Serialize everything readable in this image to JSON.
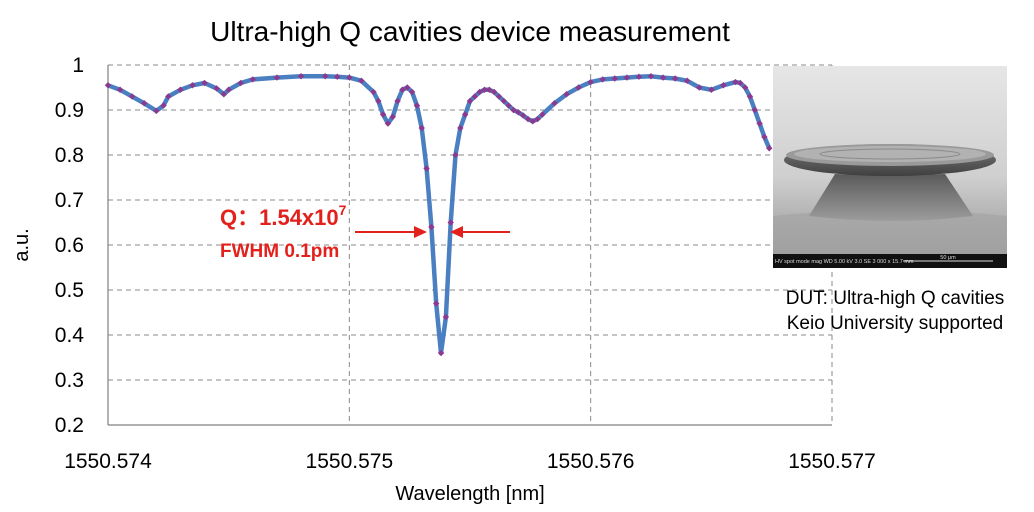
{
  "chart_data": {
    "type": "line",
    "title": "Ultra-high Q cavities device measurement",
    "xlabel": "Wavelength [nm]",
    "ylabel": "a.u.",
    "xlim": [
      1550.574,
      1550.577
    ],
    "ylim": [
      0.2,
      1
    ],
    "x_ticks": [
      "1550.574",
      "1550.575",
      "1550.576",
      "1550.577"
    ],
    "y_ticks": [
      "0.2",
      "0.3",
      "0.4",
      "0.5",
      "0.6",
      "0.7",
      "0.8",
      "0.9",
      "1"
    ],
    "grid": true,
    "series": [
      {
        "color": "#4a7fc1",
        "marker_color": "#8b3a8f",
        "x": [
          1550.574,
          1550.57405,
          1550.5741,
          1550.57415,
          1550.5742,
          1550.57423,
          1550.57425,
          1550.5743,
          1550.57435,
          1550.5744,
          1550.57445,
          1550.57448,
          1550.5745,
          1550.57455,
          1550.5746,
          1550.5747,
          1550.5748,
          1550.5749,
          1550.57495,
          1550.575,
          1550.57505,
          1550.5751,
          1550.57512,
          1550.57514,
          1550.57516,
          1550.57518,
          1550.5752,
          1550.57522,
          1550.57524,
          1550.57526,
          1550.57528,
          1550.5753,
          1550.57532,
          1550.57534,
          1550.57536,
          1550.57538,
          1550.5754,
          1550.57542,
          1550.57544,
          1550.57546,
          1550.57548,
          1550.5755,
          1550.57552,
          1550.57554,
          1550.57556,
          1550.57558,
          1550.5756,
          1550.57562,
          1550.57564,
          1550.57566,
          1550.57568,
          1550.5757,
          1550.57572,
          1550.57574,
          1550.57576,
          1550.57578,
          1550.5758,
          1550.57585,
          1550.5759,
          1550.57595,
          1550.576,
          1550.57605,
          1550.5761,
          1550.57615,
          1550.5762,
          1550.57625,
          1550.5763,
          1550.57635,
          1550.5764,
          1550.57645,
          1550.5765,
          1550.57655,
          1550.5766,
          1550.57662,
          1550.57664,
          1550.57666,
          1550.57668,
          1550.5767,
          1550.57672,
          1550.57674
        ],
        "y": [
          0.955,
          0.945,
          0.93,
          0.915,
          0.898,
          0.91,
          0.93,
          0.945,
          0.955,
          0.96,
          0.948,
          0.935,
          0.945,
          0.96,
          0.968,
          0.972,
          0.975,
          0.975,
          0.974,
          0.972,
          0.965,
          0.94,
          0.92,
          0.89,
          0.87,
          0.885,
          0.92,
          0.945,
          0.95,
          0.94,
          0.91,
          0.86,
          0.77,
          0.64,
          0.47,
          0.36,
          0.44,
          0.65,
          0.8,
          0.86,
          0.89,
          0.92,
          0.93,
          0.94,
          0.945,
          0.945,
          0.94,
          0.93,
          0.92,
          0.91,
          0.9,
          0.895,
          0.888,
          0.88,
          0.875,
          0.88,
          0.89,
          0.915,
          0.935,
          0.95,
          0.962,
          0.968,
          0.97,
          0.972,
          0.974,
          0.975,
          0.972,
          0.97,
          0.965,
          0.95,
          0.945,
          0.955,
          0.962,
          0.96,
          0.95,
          0.93,
          0.9,
          0.87,
          0.84,
          0.815
        ]
      }
    ],
    "annotations": [
      {
        "text": "Q：1.54x10",
        "superscript": "7",
        "color": "#e3211c"
      },
      {
        "text": "FWHM  0.1pm",
        "color": "#e3211c"
      }
    ]
  },
  "inset": {
    "caption_line1": "DUT: Ultra-high Q cavities",
    "caption_line2": "Keio University supported",
    "sem_info": "HV  spot  mode  mag  WD   5.00 kV  3.0  SE  3 000 x  15.7 mm",
    "sem_scale": "50 μm"
  }
}
